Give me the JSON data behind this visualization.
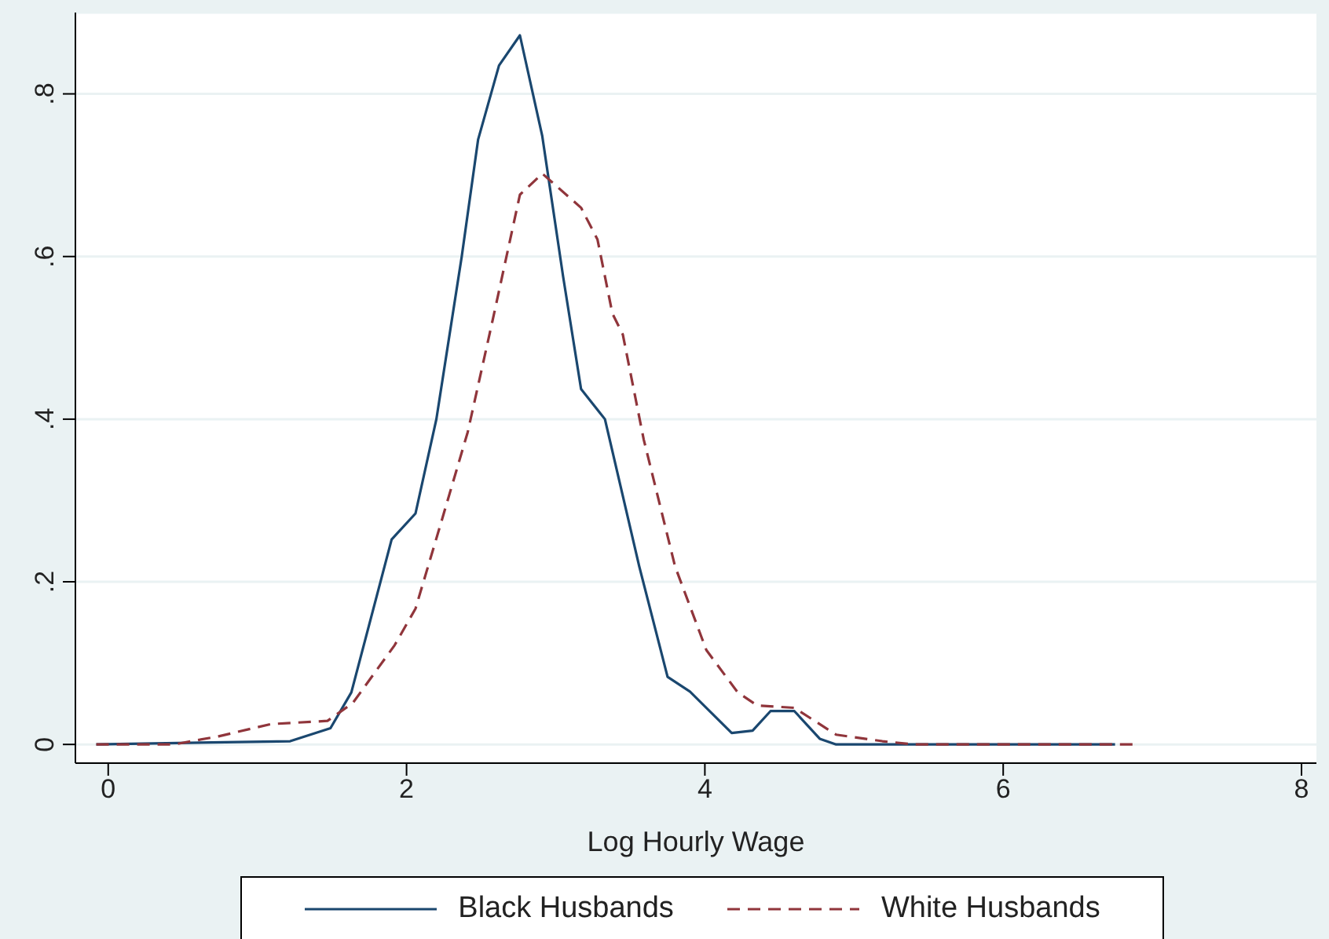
{
  "chart_data": {
    "type": "line",
    "xlabel": "Log Hourly Wage",
    "xlim": [
      -0.22,
      8.1
    ],
    "xticks": [
      0,
      2,
      4,
      6,
      8
    ],
    "ylim": [
      -0.023,
      0.9
    ],
    "yticks": [
      {
        "value": 0,
        "label": "0"
      },
      {
        "value": 0.2,
        "label": ".2"
      },
      {
        "value": 0.4,
        "label": ".4"
      },
      {
        "value": 0.6,
        "label": ".6"
      },
      {
        "value": 0.8,
        "label": ".8"
      }
    ],
    "grid": "y",
    "legend": "bottom",
    "series": [
      {
        "name": "Black Husbands",
        "color": "#1a476f",
        "line_style": "solid",
        "x": [
          -0.08,
          1.22,
          1.49,
          1.63,
          1.9,
          2.06,
          2.2,
          2.37,
          2.48,
          2.62,
          2.76,
          2.91,
          3.05,
          3.17,
          3.33,
          3.56,
          3.75,
          3.9,
          4.18,
          4.32,
          4.44,
          4.6,
          4.77,
          4.88,
          6.75
        ],
        "values": [
          0,
          0.004,
          0.02,
          0.064,
          0.252,
          0.284,
          0.4,
          0.6,
          0.744,
          0.835,
          0.872,
          0.748,
          0.575,
          0.437,
          0.4,
          0.219,
          0.083,
          0.065,
          0.014,
          0.017,
          0.041,
          0.041,
          0.007,
          0,
          0
        ]
      },
      {
        "name": "White Husbands",
        "color": "#90353b",
        "line_style": "dashed",
        "x": [
          -0.08,
          0.44,
          0.74,
          1.09,
          1.47,
          1.64,
          1.92,
          2.06,
          2.24,
          2.41,
          2.58,
          2.76,
          2.91,
          3.17,
          3.28,
          3.38,
          3.45,
          3.59,
          3.8,
          4.01,
          4.22,
          4.35,
          4.6,
          4.88,
          5.19,
          5.4,
          6.87
        ],
        "values": [
          0,
          0,
          0.01,
          0.025,
          0.029,
          0.051,
          0.122,
          0.167,
          0.278,
          0.384,
          0.524,
          0.676,
          0.702,
          0.66,
          0.621,
          0.53,
          0.504,
          0.375,
          0.219,
          0.116,
          0.064,
          0.048,
          0.045,
          0.012,
          0.004,
          0,
          0
        ]
      }
    ]
  }
}
